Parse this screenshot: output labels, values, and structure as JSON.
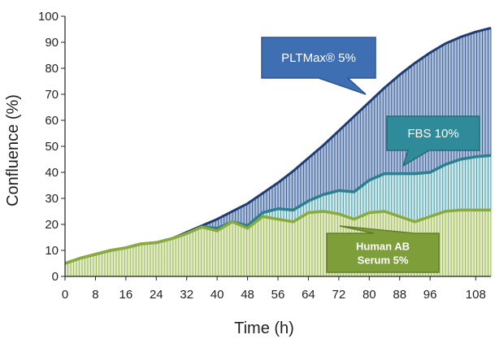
{
  "chart_data": {
    "type": "line",
    "xlabel": "Time (h)",
    "ylabel": "Confluence (%)",
    "xlim": [
      0,
      112
    ],
    "ylim": [
      0,
      100
    ],
    "x_ticks": [
      0,
      8,
      16,
      24,
      32,
      40,
      48,
      56,
      64,
      72,
      80,
      88,
      96,
      108
    ],
    "y_ticks": [
      0,
      10,
      20,
      30,
      40,
      50,
      60,
      70,
      80,
      90,
      100
    ],
    "grid": false,
    "legend": "callouts",
    "series": [
      {
        "name": "PLTMax® 5%",
        "color": "#1f3d73",
        "fill": "#4a76b8",
        "x": [
          0,
          4,
          8,
          12,
          16,
          20,
          24,
          28,
          32,
          36,
          40,
          44,
          48,
          52,
          56,
          60,
          64,
          68,
          72,
          76,
          80,
          84,
          88,
          92,
          96,
          100,
          104,
          108,
          112
        ],
        "values": [
          5,
          7,
          8.5,
          10,
          11,
          12.5,
          13,
          14.5,
          17,
          19.5,
          22,
          25,
          28,
          32,
          36,
          40.5,
          45.5,
          50.5,
          56,
          61.5,
          67,
          72.5,
          77.5,
          82,
          86,
          89.5,
          92,
          94,
          95.5
        ]
      },
      {
        "name": "FBS 10%",
        "color": "#2b7f8f",
        "fill": "#8fd0d4",
        "x": [
          0,
          4,
          8,
          12,
          16,
          20,
          24,
          28,
          32,
          36,
          40,
          44,
          48,
          52,
          56,
          60,
          64,
          68,
          72,
          76,
          80,
          84,
          88,
          92,
          96,
          100,
          104,
          108,
          112
        ],
        "values": [
          5,
          7,
          8.5,
          10,
          11,
          12.5,
          13,
          14.5,
          16.5,
          19,
          18.5,
          21,
          19.5,
          24.5,
          26,
          25.5,
          29,
          31.5,
          33,
          32.5,
          37,
          39.5,
          39.5,
          39.5,
          40,
          43,
          45,
          46,
          46.5
        ]
      },
      {
        "name": "Human AB Serum 5%",
        "color": "#8aaa3a",
        "fill": "#bcd27e",
        "x": [
          0,
          4,
          8,
          12,
          16,
          20,
          24,
          28,
          32,
          36,
          40,
          44,
          48,
          52,
          56,
          60,
          64,
          68,
          72,
          76,
          80,
          84,
          88,
          92,
          96,
          100,
          104,
          108,
          112
        ],
        "values": [
          5,
          7,
          8.5,
          10,
          11,
          12.5,
          13,
          14.5,
          16.5,
          19,
          17.5,
          21,
          18.5,
          23,
          22,
          21,
          24.5,
          25,
          24,
          22,
          24.5,
          25,
          23,
          21,
          23,
          25,
          25.5,
          25.5,
          25.5
        ]
      }
    ],
    "callouts": [
      {
        "series": 0,
        "lines": [
          "PLTMax® 5%"
        ],
        "fill": "#3f6fb3",
        "stroke": "#2e558f",
        "bold": false
      },
      {
        "series": 1,
        "lines": [
          "FBS 10%"
        ],
        "fill": "#2f8a9a",
        "stroke": "#236c78",
        "bold": false
      },
      {
        "series": 2,
        "lines": [
          "Human AB",
          "Serum 5%"
        ],
        "fill": "#7e9e3a",
        "stroke": "#647e2c",
        "bold": true
      }
    ]
  }
}
